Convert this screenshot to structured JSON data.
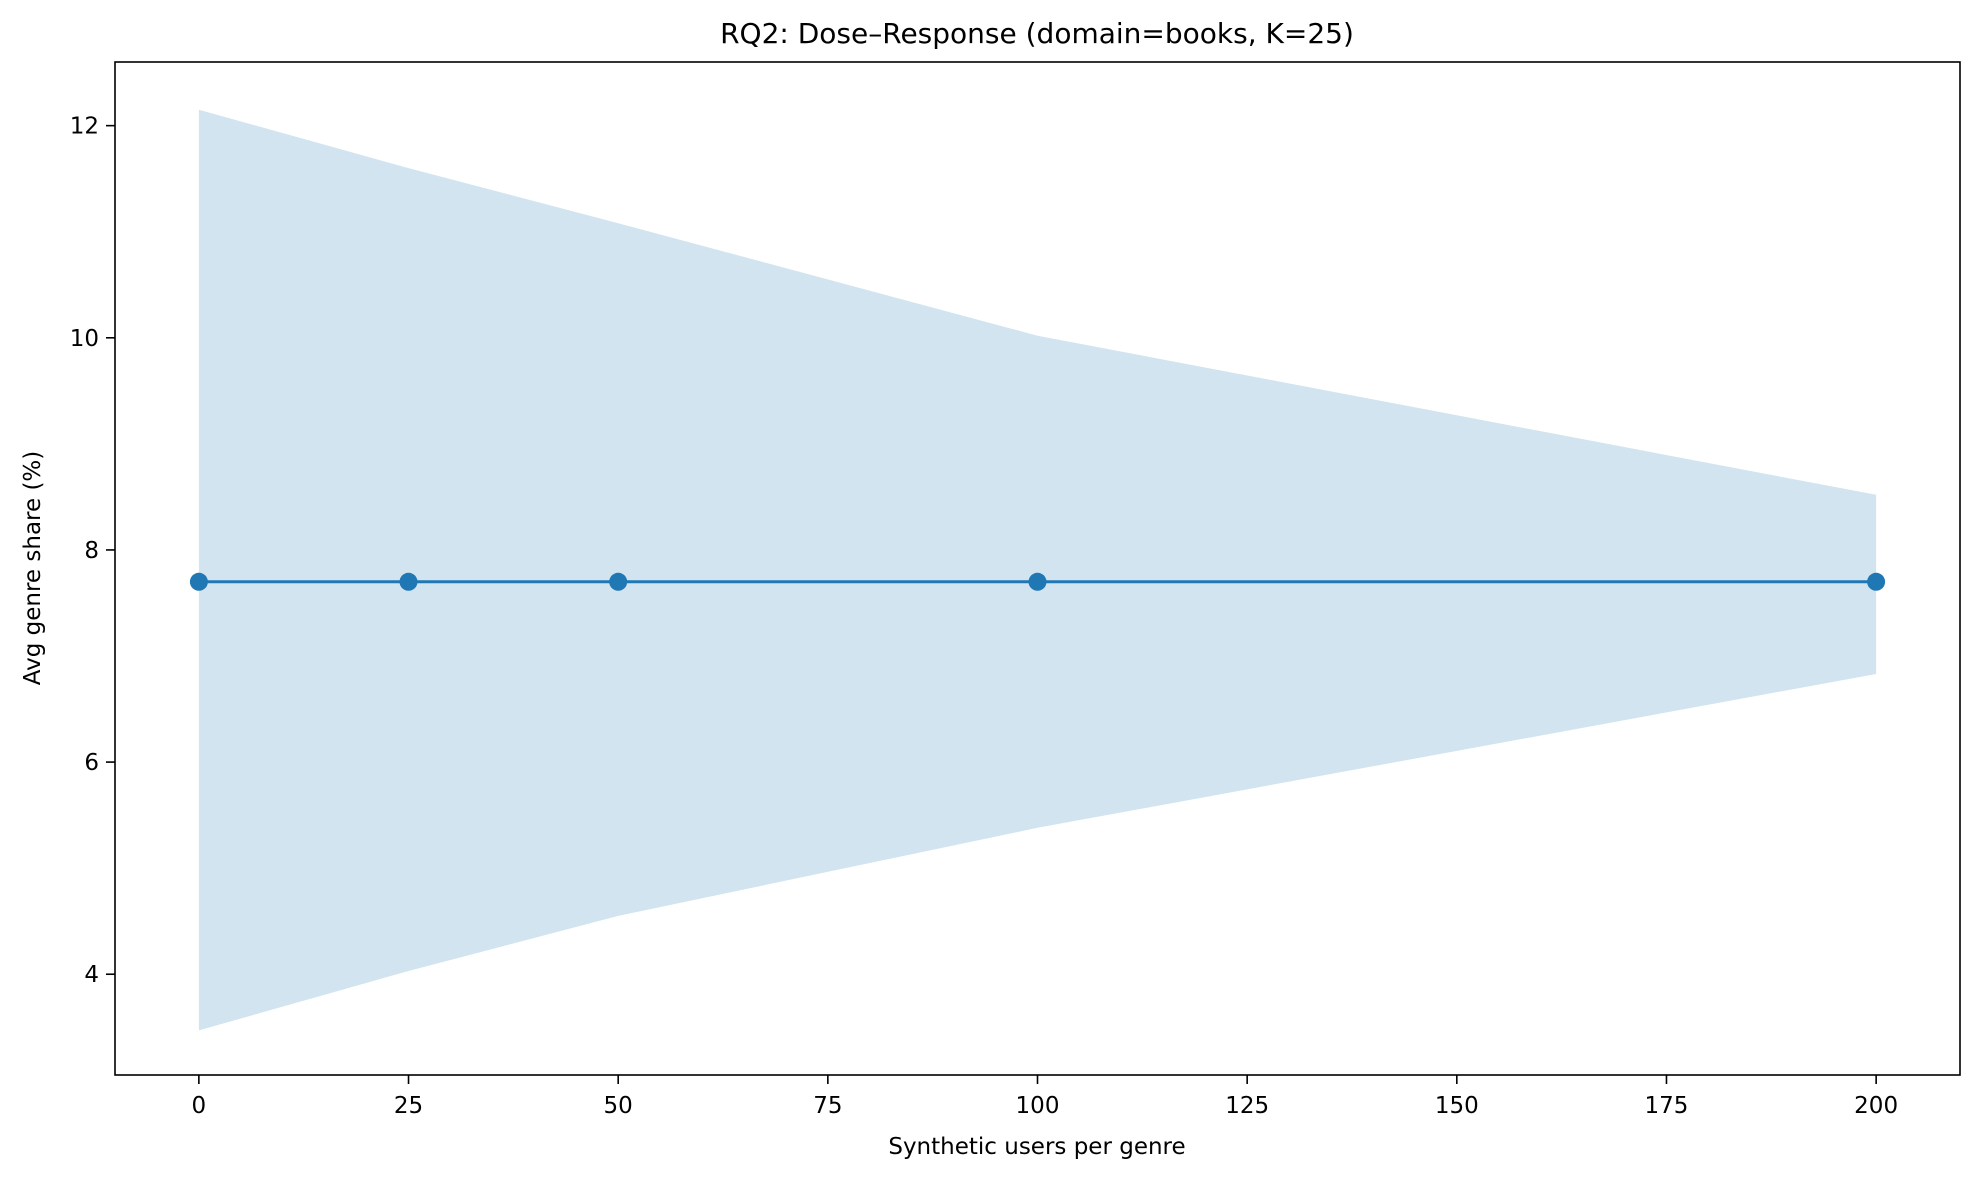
{
  "chart_data": {
    "type": "line",
    "title": "RQ2: Dose–Response (domain=books, K=25)",
    "xlabel": "Synthetic users per genre",
    "ylabel": "Avg genre share (%)",
    "xlim": [
      -10,
      210
    ],
    "ylim": [
      3.05,
      12.6
    ],
    "x_ticks": [
      0,
      25,
      50,
      75,
      100,
      125,
      150,
      175,
      200
    ],
    "y_ticks": [
      4,
      6,
      8,
      10,
      12
    ],
    "grid": false,
    "legend": "none",
    "series": [
      {
        "x": [
          0,
          25,
          50,
          100,
          200
        ],
        "values": [
          7.7,
          7.7,
          7.7,
          7.7,
          7.7
        ],
        "band_upper": [
          12.15,
          11.6,
          11.08,
          10.02,
          8.52
        ],
        "band_lower": [
          3.47,
          4.03,
          4.55,
          5.38,
          6.83
        ],
        "color": "#1f77b4",
        "band_color": "#1f77b4",
        "band_opacity": 0.2,
        "marker": "circle"
      }
    ]
  }
}
